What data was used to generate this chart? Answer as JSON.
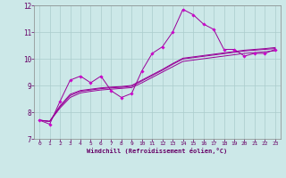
{
  "background_color": "#cce8e8",
  "grid_color": "#aacccc",
  "line_color": "#990099",
  "marker_color": "#cc00cc",
  "xlabel": "Windchill (Refroidissement éolien,°C)",
  "xlabel_color": "#660066",
  "tick_color": "#660066",
  "xlim": [
    -0.5,
    23.5
  ],
  "ylim": [
    7,
    12
  ],
  "yticks": [
    7,
    8,
    9,
    10,
    11,
    12
  ],
  "xticks": [
    0,
    1,
    2,
    3,
    4,
    5,
    6,
    7,
    8,
    9,
    10,
    11,
    12,
    13,
    14,
    15,
    16,
    17,
    18,
    19,
    20,
    21,
    22,
    23
  ],
  "smooth_y1": [
    7.7,
    7.65,
    8.15,
    8.55,
    8.72,
    8.78,
    8.83,
    8.86,
    8.89,
    8.92,
    9.1,
    9.3,
    9.5,
    9.7,
    9.9,
    9.95,
    10.0,
    10.05,
    10.1,
    10.15,
    10.2,
    10.23,
    10.26,
    10.3
  ],
  "smooth_y2": [
    7.7,
    7.65,
    8.2,
    8.62,
    8.78,
    8.83,
    8.88,
    8.91,
    8.93,
    8.97,
    9.17,
    9.37,
    9.57,
    9.79,
    9.99,
    10.04,
    10.09,
    10.14,
    10.19,
    10.24,
    10.29,
    10.32,
    10.35,
    10.38
  ],
  "smooth_y3": [
    7.7,
    7.66,
    8.23,
    8.67,
    8.81,
    8.86,
    8.91,
    8.94,
    8.96,
    9.0,
    9.2,
    9.4,
    9.6,
    9.82,
    10.02,
    10.07,
    10.12,
    10.17,
    10.22,
    10.27,
    10.32,
    10.35,
    10.38,
    10.42
  ],
  "jagged_y": [
    7.7,
    7.55,
    8.4,
    9.2,
    9.35,
    9.1,
    9.35,
    8.8,
    8.55,
    8.7,
    9.55,
    10.2,
    10.45,
    11.0,
    11.85,
    11.65,
    11.3,
    11.1,
    10.35,
    10.35,
    10.1,
    10.2,
    10.2,
    10.35
  ]
}
